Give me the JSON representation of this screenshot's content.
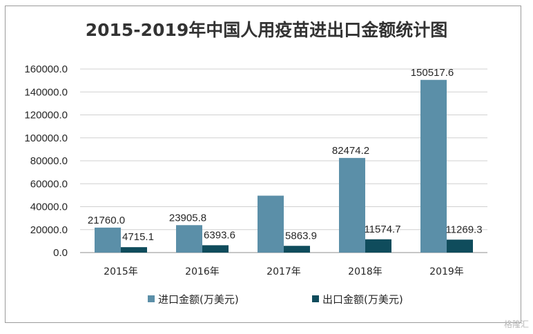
{
  "chart_data": {
    "type": "bar",
    "title": "2015-2019年中国人用疫苗进出口金额统计图",
    "categories": [
      "2015年",
      "2016年",
      "2017年",
      "2018年",
      "2019年"
    ],
    "series": [
      {
        "name": "进口金额(万美元)",
        "color": "#5B8FA8",
        "values": [
          21760.0,
          23905.8,
          49600.0,
          82474.2,
          150517.6
        ],
        "labels": [
          "21760.0",
          "23905.8",
          "",
          "82474.2",
          "150517.6"
        ]
      },
      {
        "name": "出口金额(万美元)",
        "color": "#0F4C5C",
        "values": [
          4715.1,
          6393.6,
          5863.9,
          11574.7,
          11269.3
        ],
        "labels": [
          "4715.1",
          "6393.6",
          "5863.9",
          "11574.7",
          "11269.3"
        ]
      }
    ],
    "ylim": [
      0,
      160000
    ],
    "yticks": [
      "0.0",
      "20000.0",
      "40000.0",
      "60000.0",
      "80000.0",
      "100000.0",
      "120000.0",
      "140000.0",
      "160000.0"
    ],
    "grid": true,
    "legend_position": "bottom"
  },
  "watermark": "格隆汇"
}
